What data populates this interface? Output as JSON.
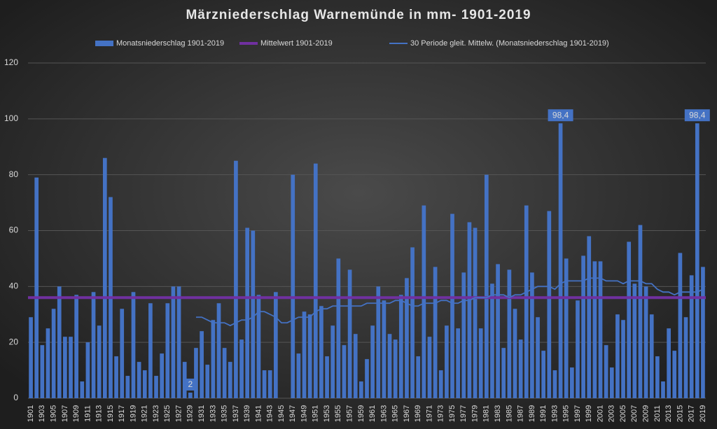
{
  "chart_data": {
    "type": "bar",
    "title": "Märzniederschlag Warnemünde in mm- 1901-2019",
    "categories": [
      "1901",
      null,
      "1903",
      null,
      "1905",
      null,
      "1907",
      null,
      "1909",
      null,
      "1911",
      null,
      "1913",
      null,
      "1915",
      null,
      "1917",
      null,
      "1919",
      null,
      "1921",
      null,
      "1923",
      null,
      "1925",
      null,
      "1927",
      null,
      "1929",
      null,
      "1931",
      null,
      "1933",
      null,
      "1935",
      null,
      "1937",
      null,
      "1939",
      null,
      "1941",
      null,
      "1943",
      null,
      "1945",
      null,
      "1947",
      null,
      "1949",
      null,
      "1951",
      null,
      "1953",
      null,
      "1955",
      null,
      "1957",
      null,
      "1959",
      null,
      "1961",
      null,
      "1963",
      null,
      "1965",
      null,
      "1967",
      null,
      "1969",
      null,
      "1971",
      null,
      "1973",
      null,
      "1975",
      null,
      "1977",
      null,
      "1979",
      null,
      "1981",
      null,
      "1983",
      null,
      "1985",
      null,
      "1987",
      null,
      "1989",
      null,
      "1991",
      null,
      "1993",
      null,
      "1995",
      null,
      "1997",
      null,
      "1999",
      null,
      "2001",
      null,
      "2003",
      null,
      "2005",
      null,
      "2007",
      null,
      "2009",
      null,
      "2011",
      null,
      "2013",
      null,
      "2015",
      null,
      "2017",
      null,
      "2019"
    ],
    "series": [
      {
        "name": "Monatsniederschlag 1901-2019",
        "color": "#4472c4",
        "values": [
          29,
          79,
          19,
          25,
          32,
          40,
          22,
          22,
          37,
          6,
          20,
          38,
          26,
          86,
          72,
          15,
          32,
          8,
          38,
          13,
          10,
          34,
          8,
          16,
          34,
          40,
          40,
          13,
          2,
          18,
          24,
          12,
          28,
          34,
          18,
          13,
          85,
          21,
          61,
          60,
          37,
          10,
          10,
          38,
          null,
          null,
          80,
          16,
          31,
          30,
          84,
          33,
          15,
          26,
          50,
          19,
          46,
          23,
          6,
          14,
          26,
          40,
          35,
          23,
          21,
          37,
          43,
          54,
          15,
          69,
          22,
          47,
          10,
          26,
          66,
          25,
          45,
          63,
          61,
          25,
          80,
          41,
          48,
          18,
          46,
          32,
          21,
          69,
          45,
          29,
          17,
          67,
          10,
          98.4,
          50,
          11,
          35,
          51,
          58,
          49,
          49,
          19,
          11,
          30,
          28,
          56,
          41,
          62,
          40,
          30,
          15,
          6,
          25,
          17,
          52,
          29,
          44,
          98.4,
          47
        ],
        "value_labels": [
          null,
          null,
          null,
          null,
          null,
          null,
          null,
          null,
          null,
          null,
          null,
          null,
          null,
          null,
          null,
          null,
          null,
          null,
          null,
          null,
          null,
          null,
          null,
          null,
          null,
          null,
          null,
          null,
          "2",
          null,
          null,
          null,
          null,
          null,
          null,
          null,
          null,
          null,
          null,
          null,
          null,
          null,
          null,
          null,
          null,
          null,
          null,
          null,
          null,
          null,
          null,
          null,
          null,
          null,
          null,
          null,
          null,
          null,
          null,
          null,
          null,
          null,
          null,
          null,
          null,
          null,
          null,
          null,
          null,
          null,
          null,
          null,
          null,
          null,
          null,
          null,
          null,
          null,
          null,
          null,
          null,
          null,
          null,
          null,
          null,
          null,
          null,
          null,
          null,
          null,
          null,
          null,
          null,
          "98,4",
          null,
          null,
          null,
          null,
          null,
          null,
          null,
          null,
          null,
          null,
          null,
          null,
          null,
          null,
          null,
          null,
          null,
          null,
          null,
          null,
          null,
          null,
          null,
          "98,4",
          null
        ]
      },
      {
        "name": "Mittelwert 1901-2019",
        "type": "line",
        "color": "#7030a0",
        "value": 36
      },
      {
        "name": "30 Periode gleit. Mittelw. (Monatsniederschlag 1901-2019)",
        "type": "line",
        "color": "#4472c4",
        "values": [
          null,
          null,
          null,
          null,
          null,
          null,
          null,
          null,
          null,
          null,
          null,
          null,
          null,
          null,
          null,
          null,
          null,
          null,
          null,
          null,
          null,
          null,
          null,
          null,
          null,
          null,
          null,
          null,
          null,
          29,
          29,
          28,
          27,
          27,
          27,
          26,
          27,
          28,
          28,
          29,
          31,
          31,
          30,
          29,
          27,
          27,
          28,
          29,
          29,
          29,
          31,
          32,
          32,
          33,
          33,
          33,
          33,
          33,
          33,
          34,
          34,
          34,
          34,
          34,
          35,
          35,
          34,
          33,
          33,
          34,
          34,
          34,
          35,
          35,
          34,
          34,
          35,
          35,
          36,
          36,
          36,
          37,
          37,
          37,
          36,
          37,
          37,
          38,
          39,
          40,
          40,
          40,
          39,
          41,
          42,
          42,
          42,
          42,
          43,
          43,
          43,
          42,
          42,
          42,
          41,
          42,
          42,
          42,
          41,
          41,
          39,
          38,
          38,
          37,
          38,
          38,
          38,
          38,
          39
        ]
      }
    ],
    "ylim": [
      0,
      120
    ],
    "yticks": [
      0,
      20,
      40,
      60,
      80,
      100,
      120
    ],
    "grid": true
  }
}
